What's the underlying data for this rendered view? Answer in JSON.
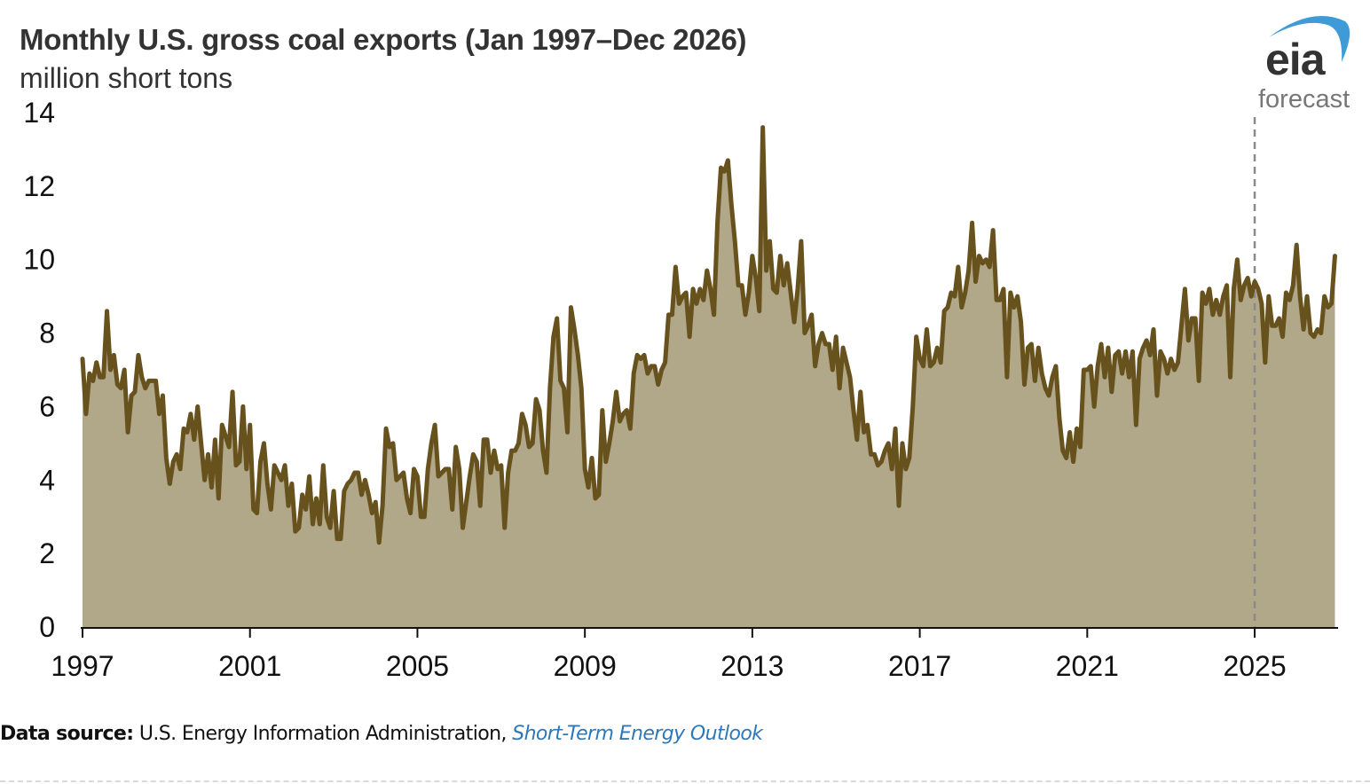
{
  "header": {
    "title": "Monthly U.S. gross coal exports (Jan 1997–Dec 2026)",
    "subtitle": "million short tons",
    "logo_text": "eia",
    "forecast_label": "forecast"
  },
  "footer": {
    "source_label": "Data source:",
    "source_text": "U.S. Energy Information Administration,",
    "source_link": "Short-Term Energy Outlook"
  },
  "colors": {
    "line": "#67521e",
    "area": "#b1a789",
    "forecast_divider": "#8a8a8a",
    "logo_arc": "#3f9ad8",
    "link": "#2e78b7"
  },
  "chart_data": {
    "type": "area",
    "title": "Monthly U.S. gross coal exports (Jan 1997–Dec 2026)",
    "ylabel": "million short tons",
    "xlabel": "",
    "ylim": [
      0,
      14
    ],
    "yticks": [
      0,
      2,
      4,
      6,
      8,
      10,
      12,
      14
    ],
    "xticks": [
      1997,
      2001,
      2005,
      2009,
      2013,
      2017,
      2021,
      2025
    ],
    "xlim": [
      "1997-01",
      "2026-12"
    ],
    "grid": false,
    "forecast_start": "2025-01",
    "start": "1997-01",
    "frequency": "monthly",
    "series": [
      {
        "name": "U.S. gross coal exports",
        "values": [
          7.3,
          5.8,
          6.9,
          6.7,
          7.2,
          6.8,
          6.8,
          8.6,
          7.0,
          7.4,
          6.6,
          6.5,
          7.0,
          5.3,
          6.3,
          6.4,
          7.4,
          6.8,
          6.5,
          6.7,
          6.7,
          6.7,
          5.8,
          6.3,
          4.6,
          3.9,
          4.5,
          4.7,
          4.3,
          5.4,
          5.3,
          5.8,
          5.1,
          6.0,
          5.0,
          4.0,
          4.7,
          3.8,
          5.1,
          3.5,
          5.5,
          5.2,
          4.9,
          6.4,
          4.4,
          4.5,
          6.0,
          4.3,
          5.5,
          3.2,
          3.1,
          4.5,
          5.0,
          3.9,
          3.2,
          4.4,
          4.2,
          4.0,
          4.4,
          3.3,
          3.9,
          2.6,
          2.7,
          3.6,
          3.2,
          4.1,
          2.8,
          3.5,
          2.8,
          4.4,
          3.0,
          2.7,
          3.7,
          2.4,
          2.4,
          3.7,
          3.9,
          4.0,
          4.2,
          4.2,
          3.6,
          4.0,
          3.6,
          3.1,
          3.4,
          2.3,
          3.3,
          5.4,
          4.9,
          5.0,
          4.0,
          4.1,
          4.2,
          3.5,
          3.1,
          4.3,
          4.1,
          3.0,
          3.0,
          4.3,
          5.0,
          5.5,
          4.1,
          4.2,
          4.3,
          4.3,
          3.2,
          4.9,
          4.3,
          2.7,
          3.4,
          4.1,
          4.7,
          4.5,
          3.3,
          5.1,
          5.1,
          4.2,
          4.8,
          4.3,
          4.4,
          2.7,
          4.2,
          4.8,
          4.8,
          5.0,
          5.8,
          5.5,
          4.9,
          5.0,
          6.2,
          5.9,
          4.8,
          4.2,
          6.5,
          7.9,
          8.4,
          6.7,
          6.5,
          5.3,
          8.7,
          8.1,
          7.4,
          6.5,
          4.3,
          3.8,
          4.6,
          3.5,
          3.6,
          5.9,
          4.5,
          5.0,
          5.6,
          6.4,
          5.6,
          5.8,
          5.9,
          5.4,
          6.9,
          7.4,
          7.3,
          7.4,
          6.9,
          7.1,
          7.1,
          6.6,
          7.0,
          7.2,
          8.5,
          8.5,
          9.8,
          8.8,
          9.0,
          9.1,
          7.9,
          9.2,
          8.8,
          9.2,
          8.9,
          9.7,
          9.2,
          8.5,
          11.0,
          12.5,
          12.4,
          12.7,
          11.5,
          10.5,
          9.3,
          9.3,
          8.5,
          9.1,
          10.1,
          9.5,
          8.6,
          13.6,
          9.7,
          10.5,
          9.2,
          9.1,
          10.1,
          9.3,
          9.9,
          9.1,
          8.3,
          9.2,
          10.5,
          8.0,
          8.2,
          8.5,
          7.1,
          7.7,
          8.0,
          7.7,
          7.7,
          7.0,
          7.9,
          6.5,
          7.6,
          7.2,
          6.8,
          5.9,
          5.1,
          6.4,
          5.3,
          5.5,
          4.7,
          4.7,
          4.4,
          4.5,
          4.8,
          5.0,
          4.3,
          5.4,
          3.3,
          5.0,
          4.3,
          4.6,
          6.0,
          7.9,
          7.3,
          7.1,
          8.1,
          7.1,
          7.2,
          7.6,
          7.2,
          8.6,
          8.7,
          9.1,
          9.0,
          9.8,
          8.7,
          9.1,
          9.7,
          11.0,
          9.4,
          10.1,
          9.9,
          10.0,
          9.8,
          10.8,
          8.9,
          8.9,
          9.2,
          6.8,
          9.1,
          8.7,
          9.0,
          8.3,
          6.6,
          7.6,
          7.7,
          6.7,
          7.6,
          6.9,
          6.5,
          6.3,
          6.8,
          7.1,
          5.7,
          4.8,
          4.6,
          5.3,
          4.5,
          5.4,
          4.9,
          7.0,
          7.0,
          7.1,
          6.0,
          7.1,
          7.7,
          6.8,
          7.6,
          6.4,
          7.4,
          7.5,
          6.9,
          7.5,
          6.8,
          7.5,
          5.5,
          7.3,
          7.6,
          7.8,
          7.4,
          8.1,
          6.3,
          7.5,
          7.3,
          6.9,
          7.3,
          7.0,
          7.2,
          8.2,
          9.2,
          7.8,
          8.4,
          8.4,
          6.7,
          9.1,
          8.8,
          9.2,
          8.5,
          8.9,
          8.5,
          9.0,
          9.3,
          6.8,
          9.2,
          10.0,
          8.9,
          9.3,
          9.5,
          9.0,
          9.4,
          9.2,
          8.8,
          7.2,
          9.0,
          8.2,
          8.2,
          8.4,
          7.9,
          9.1,
          8.9,
          9.3,
          10.4,
          9.0,
          8.1,
          9.0,
          8.0,
          7.9,
          8.1,
          8.0,
          9.0,
          8.7,
          8.8,
          10.1
        ]
      }
    ]
  }
}
